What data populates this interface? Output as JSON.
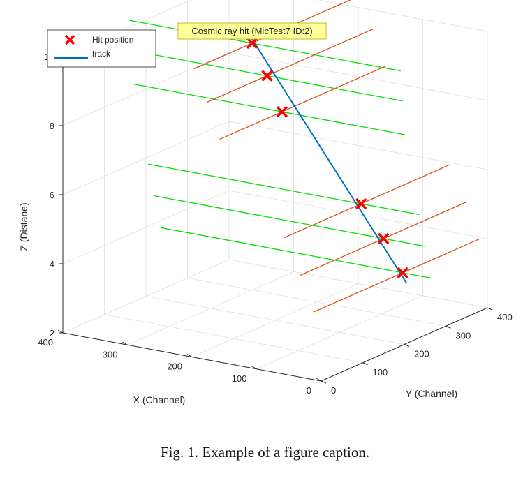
{
  "figure": {
    "caption": "Fig. 1.  Example of a figure caption."
  },
  "chart_data": {
    "type": "scatter",
    "title": "Cosmic ray hit (MicTest7 ID:2)",
    "xlabel": "X (Channel)",
    "ylabel": "Y (Channel)",
    "zlabel": "Z (Distane)",
    "xlim": [
      0,
      400
    ],
    "ylim": [
      0,
      400
    ],
    "zlim": [
      2,
      10
    ],
    "x_ticks": [
      "400",
      "300",
      "200",
      "100",
      "0"
    ],
    "y_ticks": [
      "0",
      "100",
      "200",
      "300",
      "400"
    ],
    "z_ticks": [
      "2",
      "4",
      "6",
      "8",
      "10"
    ],
    "grid": true,
    "legend_position": "top-left",
    "legend": [
      {
        "label": "Hit position",
        "marker": "x",
        "color": "#ff0000"
      },
      {
        "label": "track",
        "marker": "line",
        "color": "#0072bd"
      }
    ],
    "series": [
      {
        "name": "Hit position",
        "marker": "x",
        "color": "#ff0000",
        "points": [
          {
            "x": 25,
            "y": 235,
            "z": 3.8
          },
          {
            "x": 45,
            "y": 220,
            "z": 4.8
          },
          {
            "x": 70,
            "y": 205,
            "z": 5.8
          },
          {
            "x": 170,
            "y": 170,
            "z": 8.3
          },
          {
            "x": 190,
            "y": 165,
            "z": 9.3
          },
          {
            "x": 210,
            "y": 160,
            "z": 10.2
          }
        ]
      },
      {
        "name": "track",
        "type": "line",
        "color": "#0072bd",
        "points": [
          {
            "x": 20,
            "y": 237,
            "z": 3.5
          },
          {
            "x": 215,
            "y": 158,
            "z": 10.5
          }
        ]
      }
    ],
    "green_strips": [
      {
        "z": 3.8,
        "y": 235
      },
      {
        "z": 4.8,
        "y": 220
      },
      {
        "z": 5.8,
        "y": 205
      },
      {
        "z": 8.3,
        "y": 170
      },
      {
        "z": 9.3,
        "y": 165
      },
      {
        "z": 10.2,
        "y": 160
      }
    ],
    "orange_strips": [
      {
        "z": 3.8,
        "x": 25
      },
      {
        "z": 4.8,
        "x": 45
      },
      {
        "z": 5.8,
        "x": 70
      },
      {
        "z": 8.3,
        "x": 170
      },
      {
        "z": 9.3,
        "x": 190
      },
      {
        "z": 10.2,
        "x": 210
      }
    ],
    "colors": {
      "green_strip": "#00e000",
      "orange_strip": "#d95319",
      "grid": "#e6e6e6",
      "axis": "#262626",
      "title_bg": "#ffff99"
    }
  }
}
